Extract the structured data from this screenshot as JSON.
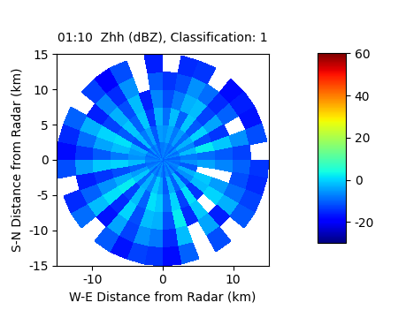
{
  "chart_data": {
    "type": "polar_heatmap",
    "title": "01:10  Zhh (dBZ), Classification: 1",
    "x_label": "W-E Distance from Radar (km)",
    "y_label": "S-N Distance from Radar (km)",
    "xlim": [
      -15,
      15
    ],
    "ylim": [
      -15,
      15
    ],
    "xticks": [
      -10,
      0,
      10
    ],
    "yticks": [
      -15,
      -10,
      -5,
      0,
      5,
      10,
      15
    ],
    "azimuth_edges": [
      0,
      10,
      20,
      30,
      40,
      50,
      60,
      70,
      80,
      90,
      100,
      110,
      120,
      130,
      140,
      150,
      160,
      170,
      180,
      190,
      200,
      210,
      220,
      230,
      240,
      250,
      260,
      270,
      280,
      290,
      300,
      310,
      320,
      330,
      340,
      350,
      360
    ],
    "range_edges": [
      0,
      2.5,
      5,
      7.5,
      10,
      12.5,
      15
    ],
    "cells": [
      [
        -8,
        -6,
        -9,
        -12,
        -14,
        null
      ],
      [
        -7,
        -4,
        -2,
        -8,
        -12,
        -15
      ],
      [
        -9,
        -8,
        -10,
        -3,
        -6,
        -14
      ],
      [
        -8,
        -5,
        -1,
        -2,
        -9,
        null
      ],
      [
        -10,
        -9,
        -11,
        -13,
        -15,
        -18
      ],
      [
        -6,
        -3,
        0,
        -4,
        -10,
        -16
      ],
      [
        -9,
        -7,
        -12,
        -14,
        null,
        -17
      ],
      [
        -7,
        -2,
        2,
        -1,
        -6,
        -12
      ],
      [
        -10,
        -8,
        -9,
        -11,
        -13,
        null
      ],
      [
        -8,
        -6,
        -4,
        -7,
        -10,
        -14
      ],
      [
        -9,
        -11,
        null,
        null,
        -12,
        -15
      ],
      [
        -7,
        -3,
        -1,
        -5,
        -9,
        -13
      ],
      [
        -8,
        -6,
        -2,
        0,
        -3,
        -11
      ],
      [
        -10,
        -12,
        -14,
        null,
        -16,
        null
      ],
      [
        -6,
        -2,
        1,
        -1,
        -4,
        -12
      ],
      [
        -9,
        -10,
        -13,
        -15,
        null,
        null
      ],
      [
        -7,
        -3,
        0,
        2,
        -2,
        -10
      ],
      [
        -10,
        -11,
        -9,
        -12,
        -15,
        -18
      ],
      [
        -8,
        -4,
        -1,
        -3,
        -8,
        -14
      ],
      [
        -6,
        -1,
        1,
        -2,
        -6,
        -13
      ],
      [
        -9,
        -7,
        -10,
        -12,
        -13,
        -17
      ],
      [
        -7,
        -3,
        -2,
        0,
        -4,
        -11
      ],
      [
        -10,
        -9,
        -13,
        -15,
        -17,
        null
      ],
      [
        -6,
        -1,
        2,
        1,
        -2,
        -9
      ],
      [
        -8,
        -5,
        -3,
        -6,
        -10,
        -15
      ],
      [
        -9,
        -10,
        -12,
        -14,
        -16,
        null
      ],
      [
        -7,
        -2,
        0,
        -1,
        -5,
        -12
      ],
      [
        -8,
        -6,
        -8,
        -11,
        -14,
        -18
      ],
      [
        -9,
        -5,
        -2,
        -4,
        -9,
        -15
      ],
      [
        -7,
        -3,
        1,
        0,
        -3,
        -10
      ],
      [
        -10,
        -12,
        -11,
        -13,
        -16,
        null
      ],
      [
        -6,
        -2,
        -1,
        -3,
        -7,
        -13
      ],
      [
        -9,
        -8,
        -10,
        -12,
        -15,
        -19
      ],
      [
        -7,
        -4,
        -1,
        -2,
        -6,
        -12
      ],
      [
        -10,
        -11,
        -14,
        -16,
        null,
        null
      ],
      [
        -8,
        -5,
        -3,
        -7,
        -11,
        -16
      ]
    ],
    "colorbar_range": [
      -30,
      60
    ],
    "colorbar_ticks": [
      -20,
      0,
      20,
      40,
      60
    ]
  }
}
